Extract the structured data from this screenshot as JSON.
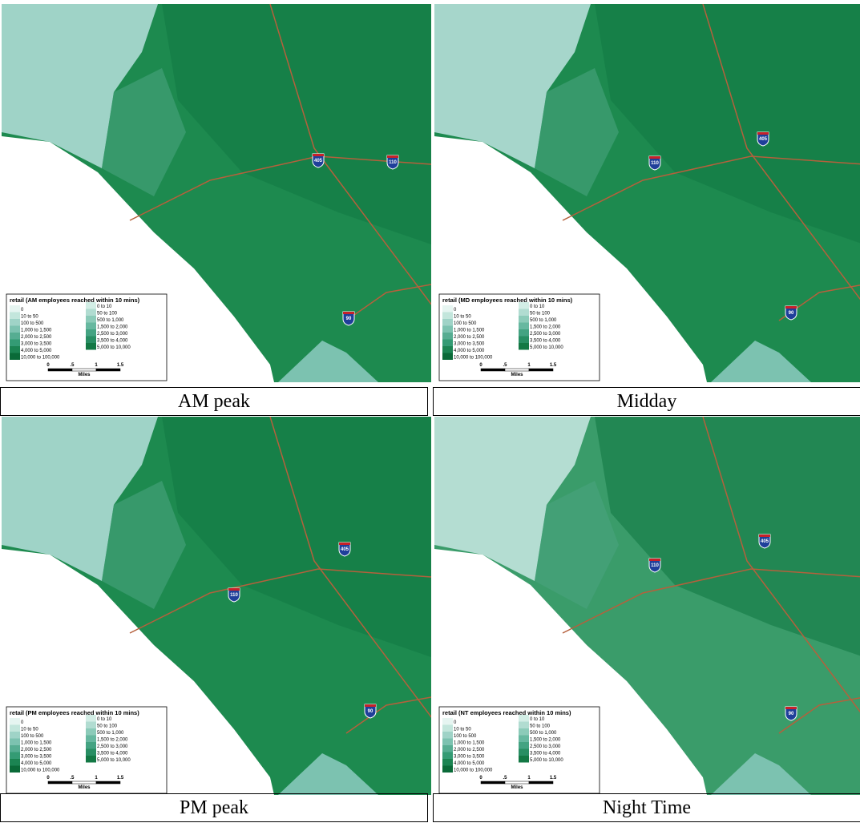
{
  "panels": [
    {
      "caption": "AM peak",
      "legend_title": "retail (AM employees reached within 10 mins)",
      "shields": [
        "405",
        "110",
        "90"
      ]
    },
    {
      "caption": "Midday",
      "legend_title": "retail (MD employees reached within 10 mins)",
      "shields": [
        "405",
        "110",
        "90"
      ]
    },
    {
      "caption": "PM peak",
      "legend_title": "retail (PM employees reached within 10 mins)",
      "shields": [
        "405",
        "110",
        "90"
      ]
    },
    {
      "caption": "Night Time",
      "legend_title": "retail (NT employees reached within 10 mins)",
      "shields": [
        "405",
        "110",
        "90"
      ]
    }
  ],
  "legend": {
    "left": [
      "0",
      "10 to 50",
      "100 to 500",
      "1,000 to 1,500",
      "2,000 to 2,500",
      "3,000 to 3,500",
      "4,000 to 5,000",
      "10,000 to 100,000"
    ],
    "right": [
      "0 to 10",
      "50 to 100",
      "500 to 1,000",
      "1,500 to 2,000",
      "2,500 to 3,000",
      "3,500 to 4,000",
      "5,000 to 10,000"
    ],
    "scale": [
      "0",
      ".5",
      "1",
      "1.5"
    ],
    "scale_unit": "Miles"
  }
}
